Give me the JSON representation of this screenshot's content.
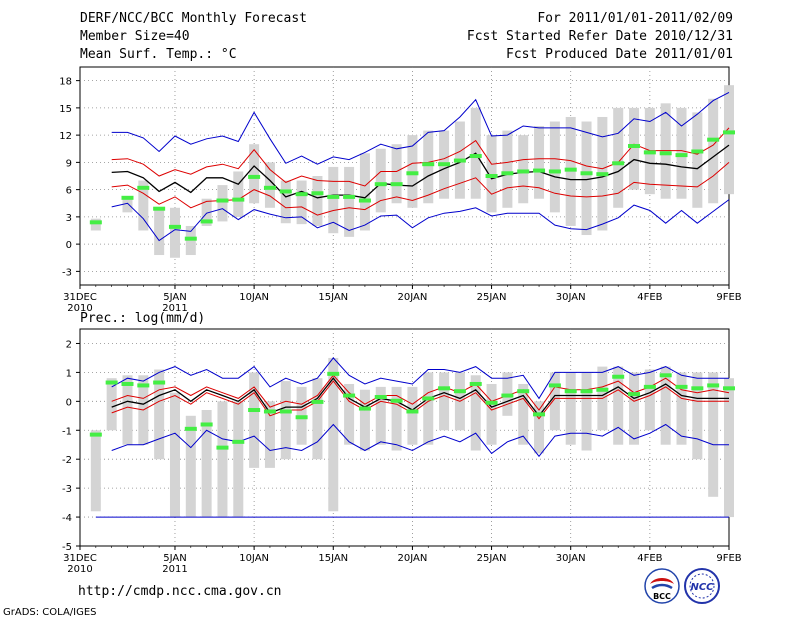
{
  "header": {
    "title": "DERF/NCC/BCC Monthly Forecast",
    "member_size": "Member Size=40",
    "variable1": "Mean Surf. Temp.: °C",
    "for_range": "For 2011/01/01-2011/02/09",
    "fcst_started": "Fcst Started Refer Date 2010/12/31",
    "fcst_produced": "Fcst Produced Date 2011/01/01"
  },
  "panel2_title": "Prec.: log(mm/d)",
  "footer": {
    "url": "http://cmdp.ncc.cma.gov.cn",
    "credit": "GrADS: COLA/IGES",
    "logo_bcc": "BCC",
    "logo_ncc": "NCC"
  },
  "colors": {
    "max_line": "#0000cc",
    "pct_line": "#dd0000",
    "mean_line": "#000000",
    "box": "#d4d4d4",
    "obs": "#44ee44"
  },
  "chart_data": [
    {
      "type": "box",
      "title": "Mean Surf. Temp.: °C",
      "x_day_range": [
        0,
        40
      ],
      "x_ticks": [
        {
          "day": 0,
          "label": "31DEC",
          "sub": "2010"
        },
        {
          "day": 6,
          "label": "5JAN",
          "sub": "2011"
        },
        {
          "day": 11,
          "label": "10JAN",
          "sub": ""
        },
        {
          "day": 16,
          "label": "15JAN",
          "sub": ""
        },
        {
          "day": 21,
          "label": "20JAN",
          "sub": ""
        },
        {
          "day": 26,
          "label": "25JAN",
          "sub": ""
        },
        {
          "day": 31,
          "label": "30JAN",
          "sub": ""
        },
        {
          "day": 36,
          "label": "4FEB",
          "sub": ""
        },
        {
          "day": 41,
          "label": "9FEB",
          "sub": ""
        }
      ],
      "ylim": [
        -4.5,
        19.5
      ],
      "y_ticks": [
        -3,
        0,
        3,
        6,
        9,
        12,
        15,
        18
      ],
      "days": [
        1,
        2,
        3,
        4,
        5,
        6,
        7,
        8,
        9,
        10,
        11,
        12,
        13,
        14,
        15,
        16,
        17,
        18,
        19,
        20,
        21,
        22,
        23,
        24,
        25,
        26,
        27,
        28,
        29,
        30,
        31,
        32,
        33,
        34,
        35,
        36,
        37,
        38,
        39,
        40,
        41
      ],
      "observed": [
        2.4,
        null,
        5.1,
        6.2,
        3.9,
        1.9,
        0.6,
        2.5,
        4.8,
        4.9,
        7.4,
        6.2,
        5.8,
        5.5,
        5.6,
        5.2,
        5.2,
        4.8,
        6.6,
        6.6,
        7.8,
        8.8,
        8.8,
        9.2,
        9.7,
        7.5,
        7.8,
        8.0,
        8.1,
        8.0,
        8.2,
        7.8,
        7.7,
        8.9,
        10.8,
        10.1,
        10.0,
        9.8,
        10.2,
        11.5,
        12.3
      ],
      "box_low": [
        1.5,
        null,
        3.5,
        1.5,
        -1.2,
        -1.5,
        -1.2,
        2.0,
        2.5,
        3.0,
        4.5,
        4.0,
        2.3,
        2.2,
        2.0,
        1.2,
        0.8,
        1.5,
        3.5,
        4.5,
        4.0,
        4.5,
        5.0,
        5.0,
        5.0,
        3.5,
        4.0,
        4.5,
        5.0,
        3.5,
        2.0,
        1.0,
        1.5,
        4.0,
        6.0,
        5.5,
        5.0,
        5.0,
        4.0,
        4.5,
        5.5
      ],
      "box_high": [
        2.8,
        null,
        5.0,
        7.0,
        4.0,
        4.0,
        2.0,
        5.0,
        6.5,
        8.0,
        11.0,
        9.0,
        7.0,
        7.0,
        7.5,
        8.5,
        8.5,
        10.0,
        10.5,
        11.0,
        12.0,
        12.5,
        12.5,
        13.5,
        15.0,
        12.0,
        12.5,
        12.0,
        13.0,
        13.5,
        14.0,
        13.5,
        14.0,
        15.0,
        15.0,
        15.0,
        15.5,
        15.0,
        14.5,
        16.0,
        17.5
      ],
      "max_line": [
        null,
        12.3,
        12.3,
        11.7,
        10.2,
        11.9,
        11.0,
        11.6,
        11.9,
        11.3,
        14.5,
        11.6,
        8.9,
        9.7,
        8.8,
        9.6,
        9.3,
        10.1,
        11.0,
        10.5,
        10.8,
        12.3,
        12.5,
        14.0,
        15.9,
        11.9,
        12.0,
        13.0,
        12.8,
        12.8,
        12.8,
        12.3,
        11.8,
        12.2,
        13.8,
        13.5,
        14.5,
        13.0,
        14.3,
        15.8,
        16.7
      ],
      "pct_high": [
        null,
        9.3,
        9.4,
        8.8,
        7.5,
        8.2,
        7.7,
        8.5,
        8.8,
        8.3,
        10.4,
        8.2,
        6.8,
        7.5,
        7.0,
        6.9,
        6.9,
        6.4,
        8.0,
        8.0,
        8.9,
        9.0,
        9.4,
        10.2,
        11.4,
        8.8,
        9.0,
        9.3,
        9.4,
        9.4,
        9.2,
        8.6,
        8.3,
        9.0,
        11.0,
        10.3,
        10.3,
        10.3,
        9.9,
        10.9,
        12.8
      ],
      "mean_line": [
        null,
        7.9,
        8.0,
        7.3,
        5.8,
        6.8,
        5.7,
        7.3,
        7.3,
        6.6,
        8.6,
        7.0,
        5.2,
        5.8,
        5.1,
        5.4,
        5.4,
        5.1,
        6.7,
        6.5,
        6.4,
        7.5,
        8.3,
        9.0,
        10.0,
        7.2,
        7.7,
        7.9,
        8.0,
        7.4,
        7.1,
        7.1,
        7.4,
        8.0,
        9.3,
        8.9,
        8.8,
        8.5,
        8.3,
        9.6,
        10.9
      ],
      "pct_low": [
        null,
        6.3,
        6.5,
        5.6,
        4.4,
        5.2,
        4.0,
        4.7,
        4.8,
        4.9,
        6.0,
        5.3,
        4.0,
        4.1,
        3.2,
        3.7,
        4.0,
        3.8,
        4.8,
        5.2,
        4.8,
        5.4,
        6.1,
        6.7,
        7.3,
        5.5,
        6.2,
        6.4,
        6.2,
        5.6,
        5.3,
        5.2,
        5.3,
        5.6,
        6.8,
        6.6,
        6.5,
        6.4,
        6.3,
        7.5,
        9.0
      ],
      "min_line": [
        null,
        4.1,
        4.5,
        2.8,
        0.4,
        1.6,
        1.4,
        3.4,
        3.9,
        2.7,
        3.8,
        3.3,
        2.9,
        3.0,
        1.8,
        2.4,
        1.5,
        2.1,
        3.1,
        3.2,
        1.8,
        2.9,
        3.4,
        3.6,
        4.0,
        3.1,
        3.4,
        3.4,
        3.4,
        2.1,
        1.7,
        1.6,
        2.2,
        2.9,
        4.3,
        3.7,
        2.3,
        3.7,
        2.3,
        3.6,
        4.9
      ]
    },
    {
      "type": "box",
      "title": "Prec.: log(mm/d)",
      "x_day_range": [
        0,
        40
      ],
      "x_ticks": [
        {
          "day": 0,
          "label": "31DEC",
          "sub": "2010"
        },
        {
          "day": 6,
          "label": "5JAN",
          "sub": "2011"
        },
        {
          "day": 11,
          "label": "10JAN",
          "sub": ""
        },
        {
          "day": 16,
          "label": "15JAN",
          "sub": ""
        },
        {
          "day": 21,
          "label": "20JAN",
          "sub": ""
        },
        {
          "day": 26,
          "label": "25JAN",
          "sub": ""
        },
        {
          "day": 31,
          "label": "30JAN",
          "sub": ""
        },
        {
          "day": 36,
          "label": "4FEB",
          "sub": ""
        },
        {
          "day": 41,
          "label": "9FEB",
          "sub": ""
        }
      ],
      "ylim": [
        -5,
        2.5
      ],
      "y_ticks": [
        -5,
        -4,
        -3,
        -2,
        -1,
        0,
        1,
        2
      ],
      "days": [
        1,
        2,
        3,
        4,
        5,
        6,
        7,
        8,
        9,
        10,
        11,
        12,
        13,
        14,
        15,
        16,
        17,
        18,
        19,
        20,
        21,
        22,
        23,
        24,
        25,
        26,
        27,
        28,
        29,
        30,
        31,
        32,
        33,
        34,
        35,
        36,
        37,
        38,
        39,
        40,
        41
      ],
      "observed": [
        -1.15,
        0.65,
        0.6,
        0.55,
        0.65,
        null,
        -0.95,
        -0.8,
        -1.6,
        -1.4,
        -0.3,
        -0.35,
        -0.35,
        -0.55,
        -0.02,
        0.95,
        0.2,
        -0.25,
        0.15,
        0.02,
        -0.35,
        0.1,
        0.45,
        0.35,
        0.6,
        -0.05,
        0.2,
        0.35,
        -0.45,
        0.55,
        0.35,
        0.35,
        0.4,
        0.85,
        0.25,
        0.5,
        0.9,
        0.5,
        0.45,
        0.55,
        0.45
      ],
      "box_low": [
        -3.8,
        -1.0,
        -1.5,
        -1.5,
        -2.0,
        -4.0,
        -4.0,
        -4.0,
        -4.0,
        -4.0,
        -2.3,
        -2.3,
        -2.0,
        -1.5,
        -2.0,
        -3.8,
        -1.5,
        -1.7,
        -1.5,
        -1.7,
        -1.5,
        -1.5,
        -1.0,
        -1.0,
        -1.7,
        -1.5,
        -0.5,
        -1.5,
        -1.8,
        -1.0,
        -1.5,
        -1.7,
        -1.0,
        -1.5,
        -1.5,
        -1.0,
        -1.5,
        -1.5,
        -2.0,
        -3.3,
        -4.0
      ],
      "box_high": [
        -1.0,
        0.8,
        0.9,
        0.9,
        1.1,
        0.3,
        -0.5,
        -0.3,
        0.0,
        0.0,
        1.0,
        0.0,
        0.7,
        0.5,
        0.8,
        1.5,
        0.6,
        0.4,
        0.5,
        0.5,
        0.5,
        1.0,
        1.0,
        1.0,
        0.9,
        0.6,
        1.0,
        0.6,
        0.0,
        1.0,
        1.0,
        1.0,
        1.2,
        1.2,
        1.0,
        1.1,
        1.2,
        1.0,
        1.0,
        1.0,
        0.8
      ],
      "max_line": [
        null,
        0.5,
        0.8,
        0.7,
        1.0,
        1.2,
        0.9,
        1.1,
        0.8,
        0.8,
        1.2,
        0.5,
        0.8,
        0.6,
        0.8,
        1.5,
        0.9,
        0.6,
        0.8,
        0.7,
        0.6,
        1.1,
        1.1,
        1.0,
        1.2,
        0.8,
        0.8,
        0.9,
        0.1,
        1.0,
        1.0,
        1.0,
        1.0,
        1.2,
        0.9,
        1.0,
        1.2,
        0.9,
        0.8,
        0.8,
        0.8
      ],
      "pct_high": [
        null,
        0.0,
        0.2,
        0.1,
        0.4,
        0.5,
        0.2,
        0.5,
        0.3,
        0.1,
        0.5,
        -0.2,
        0.0,
        -0.1,
        0.2,
        0.9,
        0.3,
        -0.1,
        0.2,
        0.2,
        -0.1,
        0.3,
        0.5,
        0.3,
        0.6,
        0.0,
        0.2,
        0.4,
        -0.3,
        0.5,
        0.4,
        0.4,
        0.5,
        0.7,
        0.3,
        0.5,
        0.8,
        0.4,
        0.3,
        0.4,
        0.3
      ],
      "mean_line": [
        null,
        -0.2,
        0.0,
        -0.1,
        0.2,
        0.4,
        0.0,
        0.4,
        0.2,
        0.0,
        0.4,
        -0.4,
        -0.2,
        -0.2,
        0.1,
        0.8,
        0.1,
        -0.2,
        0.1,
        0.0,
        -0.3,
        0.1,
        0.3,
        0.1,
        0.4,
        -0.2,
        0.0,
        0.2,
        -0.5,
        0.2,
        0.2,
        0.2,
        0.2,
        0.5,
        0.1,
        0.3,
        0.6,
        0.2,
        0.1,
        0.1,
        0.1
      ],
      "pct_low": [
        null,
        -0.4,
        -0.2,
        -0.3,
        0.0,
        0.2,
        -0.1,
        0.3,
        0.1,
        -0.1,
        0.3,
        -0.5,
        -0.3,
        -0.3,
        0.0,
        0.7,
        0.0,
        -0.3,
        0.0,
        -0.1,
        -0.4,
        0.0,
        0.2,
        0.0,
        0.3,
        -0.3,
        -0.1,
        0.1,
        -0.6,
        0.1,
        0.1,
        0.1,
        0.1,
        0.4,
        0.0,
        0.2,
        0.5,
        0.1,
        0.0,
        0.0,
        0.0
      ],
      "min_line": [
        null,
        -1.7,
        -1.5,
        -1.5,
        -1.3,
        -1.1,
        -1.6,
        -1.0,
        -1.3,
        -1.4,
        -1.2,
        -1.7,
        -1.6,
        -1.7,
        -1.4,
        -0.8,
        -1.4,
        -1.7,
        -1.4,
        -1.5,
        -1.7,
        -1.4,
        -1.2,
        -1.4,
        -1.1,
        -1.8,
        -1.4,
        -1.2,
        -1.9,
        -1.2,
        -1.1,
        -1.1,
        -1.2,
        -0.9,
        -1.3,
        -1.1,
        -0.8,
        -1.2,
        -1.3,
        -1.5,
        -1.5
      ],
      "bottom_line": -4
    }
  ]
}
